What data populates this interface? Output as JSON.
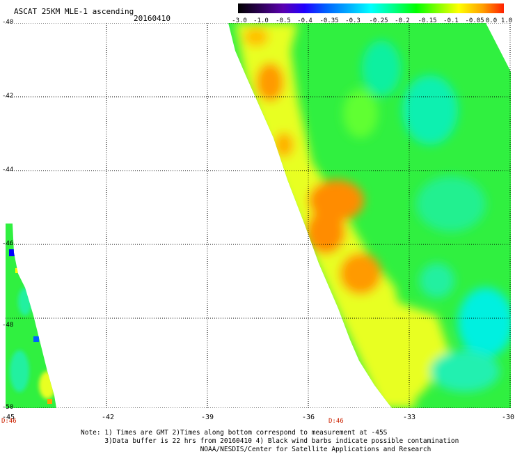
{
  "header": {
    "title": "ASCAT 25KM MLE-1 ascending",
    "date": "20160410"
  },
  "colorbar": {
    "labels": [
      "-3.0",
      "-1.0",
      "-0.5",
      "-0.4",
      "-0.35",
      "-0.3",
      "-0.25",
      "-0.2",
      "-0.15",
      "-0.1",
      "-0.05",
      "0.0",
      "1.0"
    ],
    "colors": [
      "#000000",
      "#2a0050",
      "#5a00b0",
      "#2000ff",
      "#0060ff",
      "#00b0ff",
      "#00ffff",
      "#00ff90",
      "#00ff00",
      "#80ff00",
      "#ffff00",
      "#ffa000",
      "#ff2000"
    ]
  },
  "axes": {
    "y_labels": [
      "-40",
      "-42",
      "-44",
      "-46",
      "-48",
      "-50"
    ],
    "x_labels": [
      "-45",
      "-42",
      "-39",
      "-36",
      "-33",
      "-30"
    ],
    "bottom_marks": [
      "D:46",
      "D:46"
    ]
  },
  "colors": {
    "gridline": "#000000",
    "orange": "#ff8c00",
    "yellow": "#ffe800",
    "green": "#30f040",
    "cyan": "#00f0e0",
    "blue": "#0000ff"
  },
  "footer": {
    "line1": "Note: 1) Times are GMT 2)Times along bottom correspond to measurement at -45S",
    "line2": "      3)Data buffer is 22 hrs from 20160410 4) Black wind barbs indicate possible contamination",
    "line3": "                              NOAA/NESDIS/Center for Satellite Applications and Research"
  }
}
